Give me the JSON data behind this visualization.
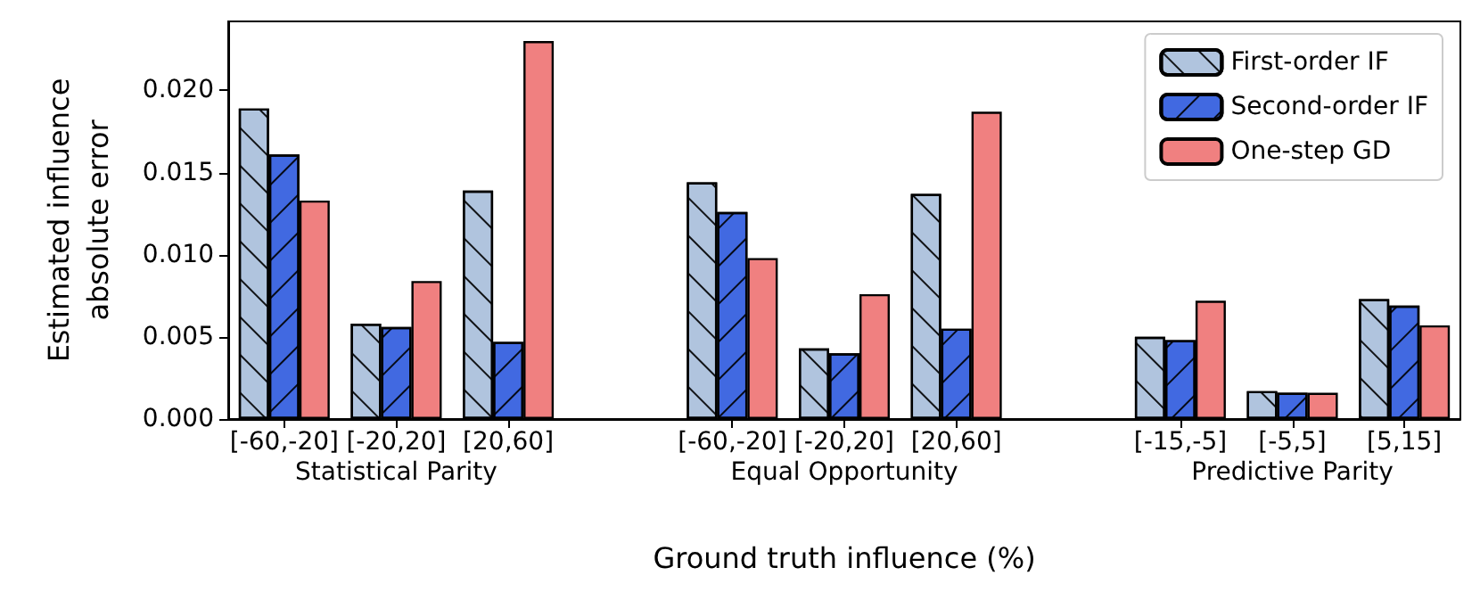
{
  "chart_data": {
    "type": "bar",
    "xlabel": "Ground truth influence (%)",
    "ylabel": "Estimated influence\nabsolute error",
    "categories": [
      "[-60,-20]",
      "[-20,20]",
      "[20,60]",
      null,
      "[-60,-20]",
      "[-20,20]",
      "[20,60]",
      null,
      "[-15,-5]",
      "[-5,5]",
      "[5,15]"
    ],
    "series": [
      {
        "name": "First-order IF",
        "color": "#b0c4de",
        "values": [
          0.0189,
          0.0058,
          0.0139,
          null,
          0.0144,
          0.0043,
          0.0137,
          null,
          0.005,
          0.0017,
          0.0073
        ]
      },
      {
        "name": "Second-order IF",
        "color": "#4169e1",
        "values": [
          0.0161,
          0.0056,
          0.0047,
          null,
          0.0126,
          0.004,
          0.0055,
          null,
          0.0048,
          0.0016,
          0.0069
        ]
      },
      {
        "name": "One-step GD",
        "color": "#f08080",
        "values": [
          0.0133,
          0.0084,
          0.023,
          null,
          0.0098,
          0.0076,
          0.0187,
          null,
          0.0072,
          0.0016,
          0.0057
        ]
      }
    ],
    "annotations": [
      "Statistical Parity",
      "Equal Opportunity",
      "Predictive Parity"
    ],
    "ylim": [
      0,
      0.0242
    ],
    "yticks": [
      {
        "value": 0,
        "label": "0.000"
      },
      {
        "value": 0.005,
        "label": "0.005"
      },
      {
        "value": 0.01,
        "label": "0.010"
      },
      {
        "value": 0.015,
        "label": "0.015"
      },
      {
        "value": 0.02,
        "label": "0.020"
      }
    ],
    "legend": "top right",
    "grid": false
  }
}
